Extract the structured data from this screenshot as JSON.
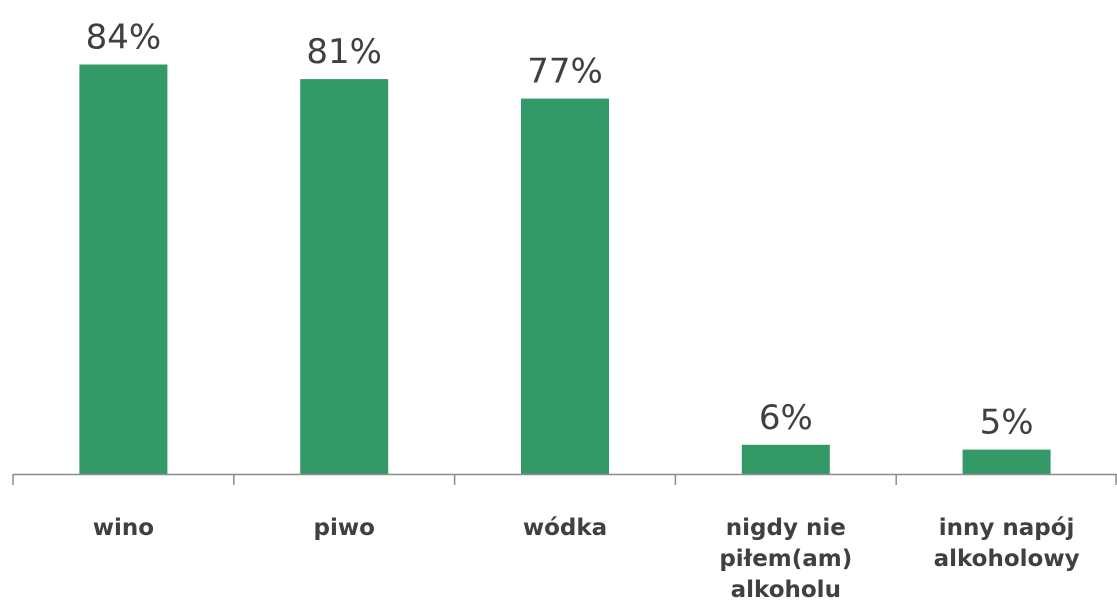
{
  "chart_data": {
    "type": "bar",
    "categories": [
      [
        "wino"
      ],
      [
        "piwo"
      ],
      [
        "wódka"
      ],
      [
        "nigdy nie",
        "piłem(am)",
        "alkoholu"
      ],
      [
        "inny napój",
        "alkoholowy"
      ]
    ],
    "values": [
      84,
      81,
      77,
      6,
      5
    ],
    "value_labels": [
      "84%",
      "81%",
      "77%",
      "6%",
      "5%"
    ],
    "ylim": [
      0,
      100
    ],
    "unit": "%",
    "grid": false,
    "legend": "none",
    "colors": {
      "bar": "#339966",
      "text": "#404040",
      "axis": "#8c8c8c"
    }
  }
}
